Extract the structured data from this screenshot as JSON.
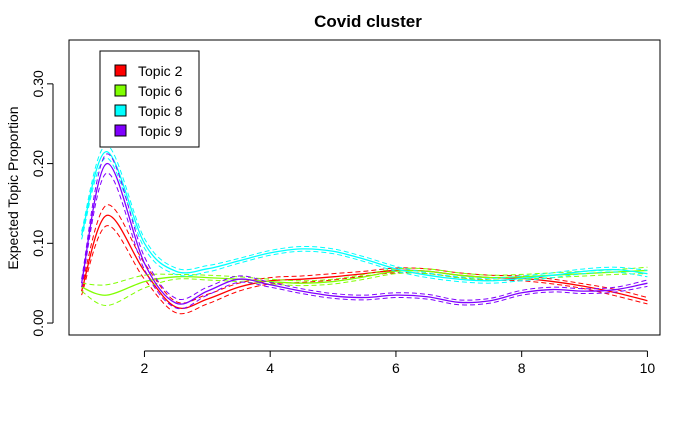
{
  "chart_data": {
    "type": "line",
    "title": "Covid cluster",
    "xlabel": "",
    "ylabel": "Expected Topic Proportion",
    "xlim": [
      0.8,
      10.2
    ],
    "ylim": [
      -0.015,
      0.355
    ],
    "x_ticks": [
      2,
      4,
      6,
      8,
      10
    ],
    "y_ticks": [
      0.0,
      0.1,
      0.2,
      0.3
    ],
    "y_tick_labels": [
      "0.00",
      "0.10",
      "0.20",
      "0.30"
    ],
    "grid": false,
    "legend_position": "top-left",
    "x": [
      1,
      1.4,
      2,
      2.5,
      3,
      3.5,
      4,
      4.5,
      5,
      5.5,
      6,
      6.5,
      7,
      7.5,
      8,
      8.5,
      9,
      9.5,
      10
    ],
    "series": [
      {
        "name": "Topic 2",
        "color": "#ff0000",
        "values": [
          0.04,
          0.135,
          0.065,
          0.02,
          0.03,
          0.045,
          0.053,
          0.055,
          0.058,
          0.062,
          0.066,
          0.065,
          0.06,
          0.057,
          0.056,
          0.052,
          0.046,
          0.038,
          0.028
        ],
        "lower": [
          0.035,
          0.122,
          0.055,
          0.013,
          0.024,
          0.04,
          0.049,
          0.051,
          0.054,
          0.059,
          0.063,
          0.062,
          0.057,
          0.054,
          0.053,
          0.049,
          0.043,
          0.034,
          0.024
        ],
        "upper": [
          0.045,
          0.148,
          0.075,
          0.027,
          0.036,
          0.05,
          0.057,
          0.059,
          0.062,
          0.065,
          0.069,
          0.068,
          0.063,
          0.06,
          0.059,
          0.055,
          0.049,
          0.042,
          0.032
        ]
      },
      {
        "name": "Topic 6",
        "color": "#80ff00",
        "values": [
          0.045,
          0.035,
          0.052,
          0.058,
          0.057,
          0.055,
          0.052,
          0.05,
          0.052,
          0.058,
          0.065,
          0.065,
          0.06,
          0.057,
          0.058,
          0.06,
          0.062,
          0.064,
          0.066
        ],
        "lower": [
          0.04,
          0.022,
          0.044,
          0.055,
          0.054,
          0.052,
          0.049,
          0.047,
          0.049,
          0.055,
          0.062,
          0.062,
          0.057,
          0.054,
          0.055,
          0.057,
          0.059,
          0.061,
          0.062
        ],
        "upper": [
          0.05,
          0.048,
          0.06,
          0.061,
          0.06,
          0.058,
          0.055,
          0.053,
          0.055,
          0.061,
          0.068,
          0.068,
          0.063,
          0.06,
          0.061,
          0.063,
          0.065,
          0.067,
          0.07
        ]
      },
      {
        "name": "Topic 8",
        "color": "#00ffff",
        "values": [
          0.11,
          0.215,
          0.1,
          0.065,
          0.068,
          0.078,
          0.088,
          0.093,
          0.09,
          0.08,
          0.068,
          0.06,
          0.055,
          0.053,
          0.056,
          0.06,
          0.065,
          0.067,
          0.062
        ],
        "lower": [
          0.105,
          0.207,
          0.094,
          0.061,
          0.064,
          0.075,
          0.085,
          0.09,
          0.087,
          0.077,
          0.065,
          0.057,
          0.052,
          0.05,
          0.053,
          0.057,
          0.062,
          0.064,
          0.058
        ],
        "upper": [
          0.115,
          0.223,
          0.106,
          0.069,
          0.072,
          0.081,
          0.091,
          0.096,
          0.093,
          0.083,
          0.071,
          0.063,
          0.058,
          0.056,
          0.059,
          0.063,
          0.068,
          0.07,
          0.066
        ]
      },
      {
        "name": "Topic 9",
        "color": "#8000ff",
        "values": [
          0.05,
          0.2,
          0.075,
          0.025,
          0.04,
          0.055,
          0.048,
          0.04,
          0.034,
          0.032,
          0.035,
          0.033,
          0.026,
          0.028,
          0.038,
          0.042,
          0.04,
          0.042,
          0.05
        ],
        "lower": [
          0.045,
          0.188,
          0.067,
          0.019,
          0.035,
          0.051,
          0.045,
          0.037,
          0.031,
          0.029,
          0.032,
          0.03,
          0.023,
          0.025,
          0.035,
          0.039,
          0.037,
          0.039,
          0.046
        ],
        "upper": [
          0.055,
          0.212,
          0.083,
          0.031,
          0.045,
          0.059,
          0.051,
          0.043,
          0.037,
          0.035,
          0.038,
          0.036,
          0.029,
          0.031,
          0.041,
          0.045,
          0.043,
          0.045,
          0.054
        ]
      }
    ]
  }
}
